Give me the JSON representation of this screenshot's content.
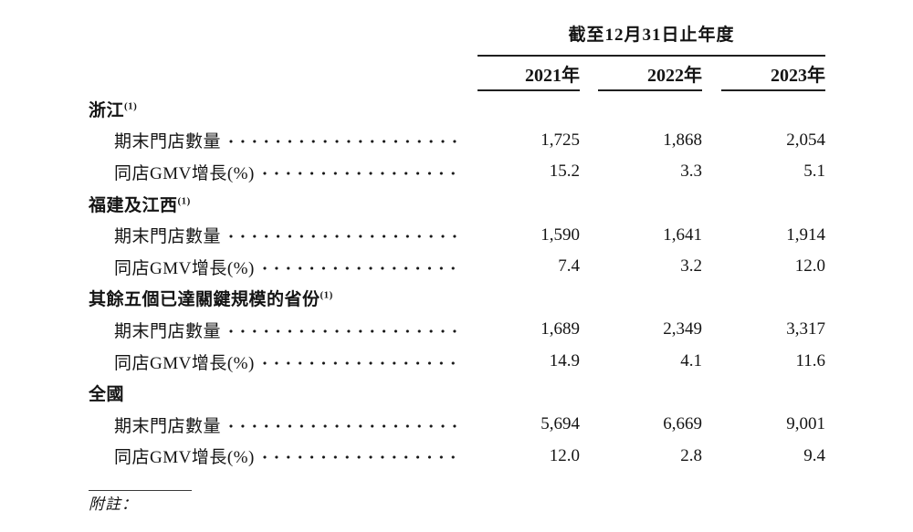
{
  "page": {
    "background_color": "#ffffff",
    "text_color": "#141414",
    "rule_color": "#1f1f1f"
  },
  "table": {
    "period_header": "截至12月31日止年度",
    "year_columns": [
      "2021年",
      "2022年",
      "2023年"
    ],
    "metric_labels": {
      "stores": "期末門店數量",
      "gmv": "同店GMV增長(%)"
    },
    "sections": [
      {
        "label": "浙江",
        "footnote_ref": "(1)",
        "stores": [
          "1,725",
          "1,868",
          "2,054"
        ],
        "gmv": [
          "15.2",
          "3.3",
          "5.1"
        ]
      },
      {
        "label": "福建及江西",
        "footnote_ref": "(1)",
        "stores": [
          "1,590",
          "1,641",
          "1,914"
        ],
        "gmv": [
          "7.4",
          "3.2",
          "12.0"
        ]
      },
      {
        "label": "其餘五個已達關鍵規模的省份",
        "footnote_ref": "(1)",
        "stores": [
          "1,689",
          "2,349",
          "3,317"
        ],
        "gmv": [
          "14.9",
          "4.1",
          "11.6"
        ]
      },
      {
        "label": "全國",
        "footnote_ref": "",
        "stores": [
          "5,694",
          "6,669",
          "9,001"
        ],
        "gmv": [
          "12.0",
          "2.8",
          "9.4"
        ]
      }
    ],
    "footnote_label": "附註："
  }
}
